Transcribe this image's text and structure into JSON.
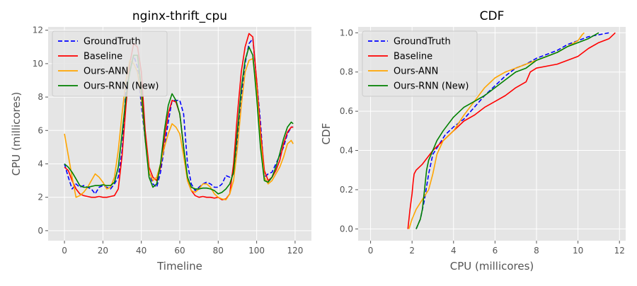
{
  "chart_data": [
    {
      "type": "line",
      "title": "nginx-thrift_cpu",
      "xlabel": "Timeline",
      "ylabel": "CPU (millicores)",
      "xlim": [
        -8.5,
        128.5
      ],
      "ylim": [
        -0.6,
        12.2
      ],
      "xticks": [
        0,
        20,
        40,
        60,
        80,
        100,
        120
      ],
      "yticks": [
        0,
        2,
        4,
        6,
        8,
        10,
        12
      ],
      "grid": true,
      "legend": "top-left",
      "series": [
        {
          "name": "GroundTruth",
          "color": "#0000ff",
          "dash": "dashed",
          "x": [
            0,
            2,
            4,
            6,
            8,
            10,
            12,
            14,
            16,
            18,
            20,
            22,
            24,
            26,
            28,
            30,
            32,
            34,
            36,
            38,
            40,
            42,
            44,
            46,
            48,
            50,
            52,
            54,
            56,
            58,
            60,
            62,
            64,
            66,
            68,
            70,
            72,
            74,
            76,
            78,
            80,
            82,
            84,
            86,
            88,
            90,
            92,
            94,
            96,
            98,
            100,
            102,
            104,
            106,
            108,
            110,
            112,
            114,
            116,
            118,
            119
          ],
          "y": [
            4.0,
            3.2,
            2.5,
            2.8,
            2.6,
            2.7,
            2.6,
            2.5,
            2.2,
            2.6,
            2.7,
            2.6,
            2.5,
            2.8,
            3.2,
            4.8,
            8.5,
            9.5,
            10.5,
            9.8,
            7.5,
            5.5,
            3.5,
            2.8,
            2.6,
            3.5,
            5.0,
            6.5,
            7.8,
            7.8,
            7.8,
            7.0,
            4.0,
            2.8,
            2.4,
            2.6,
            2.8,
            2.9,
            2.8,
            2.6,
            2.6,
            2.8,
            3.3,
            3.2,
            3.4,
            5.5,
            8.0,
            10.0,
            11.2,
            11.5,
            9.0,
            6.5,
            3.2,
            3.4,
            3.5,
            4.0,
            4.5,
            5.0,
            5.8,
            6.2,
            6.2
          ]
        },
        {
          "name": "Baseline",
          "color": "#ff0000",
          "dash": "solid",
          "x": [
            0,
            2,
            4,
            6,
            8,
            10,
            12,
            14,
            16,
            18,
            20,
            22,
            24,
            26,
            28,
            30,
            32,
            34,
            36,
            38,
            40,
            42,
            44,
            46,
            48,
            50,
            52,
            54,
            56,
            58,
            60,
            62,
            64,
            66,
            68,
            70,
            72,
            74,
            76,
            78,
            80,
            82,
            84,
            86,
            88,
            90,
            92,
            94,
            96,
            98,
            100,
            102,
            104,
            106,
            108,
            110,
            112,
            114,
            116,
            118,
            119
          ],
          "y": [
            3.8,
            3.6,
            3.0,
            2.5,
            2.2,
            2.1,
            2.05,
            2.0,
            2.0,
            2.05,
            2.0,
            2.0,
            2.05,
            2.1,
            2.5,
            4.5,
            7.5,
            10.0,
            11.2,
            11.0,
            9.5,
            6.0,
            3.8,
            3.2,
            3.0,
            3.8,
            5.5,
            7.0,
            7.8,
            7.7,
            7.0,
            5.0,
            3.0,
            2.4,
            2.1,
            2.0,
            2.05,
            2.0,
            2.0,
            1.95,
            2.0,
            1.85,
            1.9,
            2.2,
            4.0,
            7.0,
            9.5,
            11.0,
            11.8,
            11.6,
            9.0,
            6.0,
            3.6,
            3.0,
            3.2,
            3.6,
            4.2,
            5.2,
            5.9,
            6.2,
            6.2
          ]
        },
        {
          "name": "Ours-ANN",
          "color": "#ffa500",
          "dash": "solid",
          "x": [
            0,
            2,
            4,
            6,
            8,
            10,
            12,
            14,
            16,
            18,
            20,
            22,
            24,
            26,
            28,
            30,
            32,
            34,
            36,
            38,
            40,
            42,
            44,
            46,
            48,
            50,
            52,
            54,
            56,
            58,
            60,
            62,
            64,
            66,
            68,
            70,
            72,
            74,
            76,
            78,
            80,
            82,
            84,
            86,
            88,
            90,
            92,
            94,
            96,
            98,
            100,
            102,
            104,
            106,
            108,
            110,
            112,
            114,
            116,
            118,
            119
          ],
          "y": [
            5.8,
            4.5,
            3.2,
            2.0,
            2.1,
            2.3,
            2.6,
            3.0,
            3.4,
            3.2,
            2.9,
            2.5,
            2.6,
            3.2,
            4.8,
            7.0,
            9.0,
            10.2,
            10.0,
            9.5,
            8.0,
            5.5,
            3.5,
            3.0,
            3.2,
            4.0,
            5.0,
            5.8,
            6.4,
            6.2,
            5.8,
            4.5,
            3.0,
            2.4,
            2.3,
            2.5,
            2.8,
            2.8,
            2.6,
            2.2,
            2.0,
            1.9,
            1.85,
            2.2,
            3.0,
            5.0,
            7.5,
            9.5,
            10.2,
            10.3,
            8.5,
            5.5,
            3.2,
            2.8,
            3.0,
            3.4,
            3.8,
            4.4,
            5.2,
            5.4,
            5.2
          ]
        },
        {
          "name": "Ours-RNN (New)",
          "color": "#008000",
          "dash": "solid",
          "x": [
            0,
            2,
            4,
            6,
            8,
            10,
            12,
            14,
            16,
            18,
            20,
            22,
            24,
            26,
            28,
            30,
            32,
            34,
            36,
            38,
            40,
            42,
            44,
            46,
            48,
            50,
            52,
            54,
            56,
            58,
            60,
            62,
            64,
            66,
            68,
            70,
            72,
            74,
            76,
            78,
            80,
            82,
            84,
            86,
            88,
            90,
            92,
            94,
            96,
            98,
            100,
            102,
            104,
            106,
            108,
            110,
            112,
            114,
            116,
            118,
            119
          ],
          "y": [
            4.0,
            3.8,
            3.5,
            3.1,
            2.7,
            2.6,
            2.6,
            2.65,
            2.7,
            2.7,
            2.75,
            2.7,
            2.7,
            2.9,
            3.8,
            5.8,
            8.0,
            9.5,
            10.5,
            10.5,
            8.5,
            5.5,
            3.2,
            2.6,
            2.8,
            4.0,
            6.0,
            7.5,
            8.2,
            7.8,
            7.0,
            5.0,
            3.2,
            2.6,
            2.5,
            2.5,
            2.55,
            2.55,
            2.5,
            2.4,
            2.2,
            2.3,
            2.5,
            2.8,
            3.5,
            6.0,
            8.5,
            10.2,
            11.0,
            10.5,
            8.0,
            5.0,
            3.0,
            2.9,
            3.2,
            3.8,
            4.6,
            5.5,
            6.2,
            6.5,
            6.4
          ]
        }
      ]
    },
    {
      "type": "line",
      "title": "CDF",
      "xlabel": "CPU (millicores)",
      "ylabel": "CDF",
      "xlim": [
        -0.6,
        12.3
      ],
      "ylim": [
        -0.06,
        1.03
      ],
      "xticks": [
        0,
        2,
        4,
        6,
        8,
        10,
        12
      ],
      "yticks": [
        0.0,
        0.2,
        0.4,
        0.6,
        0.8,
        1.0
      ],
      "grid": true,
      "legend": "top-left",
      "series": [
        {
          "name": "GroundTruth",
          "color": "#0000ff",
          "dash": "dashed",
          "x": [
            2.2,
            2.4,
            2.6,
            2.8,
            3.0,
            3.3,
            3.6,
            4.0,
            4.5,
            5.0,
            5.5,
            6.0,
            6.5,
            7.0,
            7.5,
            8.0,
            8.5,
            9.0,
            9.5,
            10.0,
            10.5,
            11.0,
            11.5
          ],
          "y": [
            0.0,
            0.05,
            0.15,
            0.28,
            0.38,
            0.43,
            0.48,
            0.52,
            0.56,
            0.62,
            0.68,
            0.73,
            0.78,
            0.82,
            0.84,
            0.87,
            0.89,
            0.91,
            0.94,
            0.96,
            0.98,
            0.99,
            1.0
          ]
        },
        {
          "name": "Baseline",
          "color": "#ff0000",
          "dash": "solid",
          "x": [
            1.8,
            1.9,
            2.0,
            2.05,
            2.1,
            2.2,
            2.5,
            3.0,
            3.5,
            4.0,
            4.5,
            5.0,
            5.5,
            6.0,
            6.5,
            7.0,
            7.5,
            7.7,
            8.0,
            9.0,
            9.5,
            10.0,
            10.5,
            11.0,
            11.5,
            11.8
          ],
          "y": [
            0.0,
            0.1,
            0.18,
            0.24,
            0.28,
            0.3,
            0.33,
            0.4,
            0.45,
            0.5,
            0.55,
            0.58,
            0.62,
            0.65,
            0.68,
            0.72,
            0.75,
            0.8,
            0.82,
            0.84,
            0.86,
            0.88,
            0.92,
            0.95,
            0.97,
            1.0
          ]
        },
        {
          "name": "Ours-ANN",
          "color": "#ffa500",
          "dash": "solid",
          "x": [
            1.85,
            2.0,
            2.2,
            2.5,
            2.8,
            3.0,
            3.2,
            3.5,
            4.0,
            4.5,
            5.0,
            5.5,
            6.0,
            6.5,
            7.0,
            7.5,
            8.0,
            8.5,
            9.0,
            9.5,
            10.0,
            10.2,
            10.3
          ],
          "y": [
            0.0,
            0.05,
            0.1,
            0.15,
            0.2,
            0.28,
            0.38,
            0.45,
            0.5,
            0.58,
            0.65,
            0.72,
            0.77,
            0.8,
            0.82,
            0.84,
            0.86,
            0.88,
            0.9,
            0.93,
            0.96,
            0.99,
            1.0
          ]
        },
        {
          "name": "Ours-RNN (New)",
          "color": "#008000",
          "dash": "solid",
          "x": [
            2.2,
            2.4,
            2.5,
            2.6,
            2.7,
            2.8,
            3.0,
            3.2,
            3.5,
            4.0,
            4.5,
            5.0,
            5.5,
            6.0,
            6.5,
            7.0,
            7.5,
            8.0,
            8.5,
            9.0,
            9.5,
            10.0,
            10.5,
            11.0
          ],
          "y": [
            0.0,
            0.05,
            0.1,
            0.2,
            0.3,
            0.35,
            0.4,
            0.45,
            0.5,
            0.57,
            0.62,
            0.65,
            0.68,
            0.72,
            0.76,
            0.8,
            0.82,
            0.86,
            0.88,
            0.9,
            0.93,
            0.95,
            0.97,
            1.0
          ]
        }
      ]
    }
  ]
}
